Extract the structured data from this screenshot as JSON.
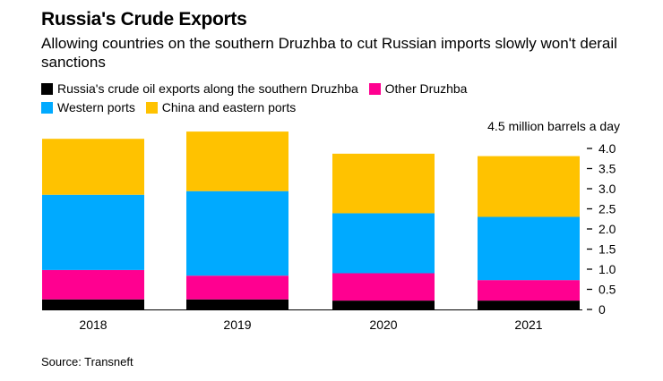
{
  "chart_data": {
    "type": "bar",
    "stacked": true,
    "title": "Russia's Crude Exports",
    "subtitle": "Allowing countries on the southern Druzhba to cut Russian imports slowly won't derail sanctions",
    "ylabel": "4.5 million barrels a day",
    "ylim": [
      0,
      4.5
    ],
    "yticks": [
      "0",
      "0.5",
      "1.0",
      "1.5",
      "2.0",
      "2.5",
      "3.0",
      "3.5",
      "4.0"
    ],
    "ytick_values": [
      0,
      0.5,
      1,
      1.5,
      2,
      2.5,
      3,
      3.5,
      4
    ],
    "categories": [
      "2018",
      "2019",
      "2020",
      "2021"
    ],
    "legend_position": "top-left",
    "grid": false,
    "series": [
      {
        "name": "Russia's crude oil exports along the southern Druzhba",
        "color": "#000000",
        "values": [
          0.25,
          0.25,
          0.22,
          0.22
        ]
      },
      {
        "name": "Other Druzhba",
        "color": "#ff0090",
        "values": [
          0.73,
          0.59,
          0.68,
          0.51
        ]
      },
      {
        "name": "Western ports",
        "color": "#00aaff",
        "values": [
          1.87,
          2.1,
          1.49,
          1.57
        ]
      },
      {
        "name": "China and eastern ports",
        "color": "#ffc200",
        "values": [
          1.39,
          1.48,
          1.48,
          1.51
        ]
      }
    ],
    "source": "Source: Transneft"
  }
}
